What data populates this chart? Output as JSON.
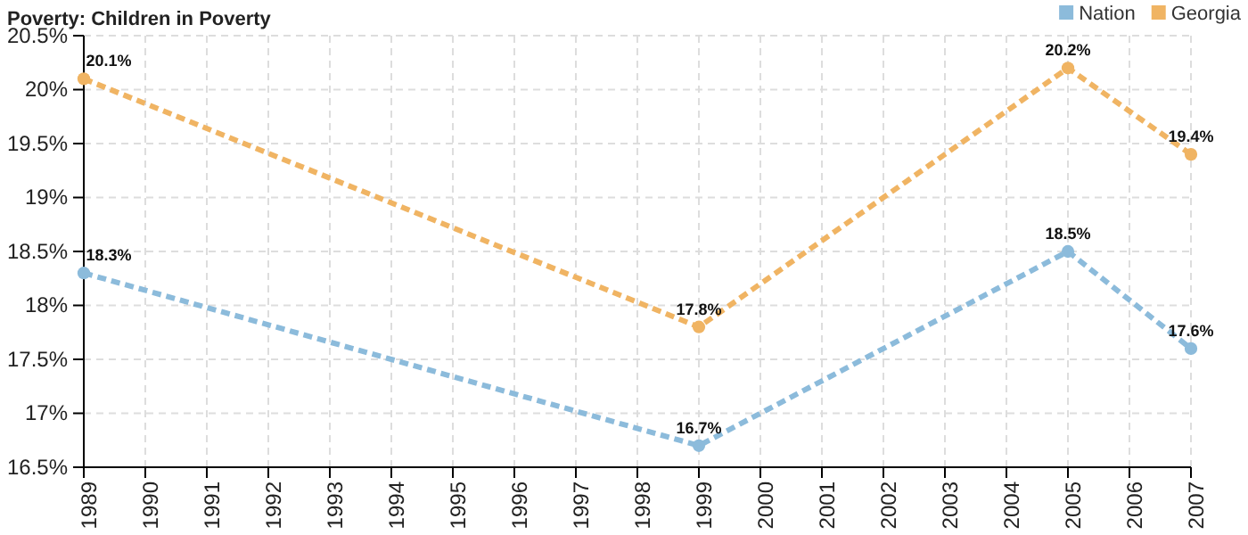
{
  "chart_data": {
    "type": "line",
    "title": "Poverty: Children in Poverty",
    "x": [
      1989,
      1999,
      2005,
      2007
    ],
    "xlim": [
      1989,
      2007
    ],
    "xticks": [
      1989,
      1990,
      1991,
      1992,
      1993,
      1994,
      1995,
      1996,
      1997,
      1998,
      1999,
      2000,
      2001,
      2002,
      2003,
      2004,
      2005,
      2006,
      2007
    ],
    "ylim": [
      16.5,
      20.5
    ],
    "yticks": [
      {
        "value": 16.5,
        "label": "16.5%"
      },
      {
        "value": 17,
        "label": "17%"
      },
      {
        "value": 17.5,
        "label": "17.5%"
      },
      {
        "value": 18,
        "label": "18%"
      },
      {
        "value": 18.5,
        "label": "18.5%"
      },
      {
        "value": 19,
        "label": "19%"
      },
      {
        "value": 19.5,
        "label": "19.5%"
      },
      {
        "value": 20,
        "label": "20%"
      },
      {
        "value": 20.5,
        "label": "20.5%"
      }
    ],
    "grid": true,
    "legend": "top right",
    "marker": "circle",
    "line_style": "dashed",
    "series": [
      {
        "name": "Nation",
        "color": "#8cbbdb",
        "values": [
          18.3,
          16.7,
          18.5,
          17.6
        ],
        "value_labels": [
          "18.3%",
          "16.7%",
          "18.5%",
          "17.6%"
        ]
      },
      {
        "name": "Georgia",
        "color": "#f0b463",
        "values": [
          20.1,
          17.8,
          20.2,
          19.4
        ],
        "value_labels": [
          "20.1%",
          "17.8%",
          "20.2%",
          "19.4%"
        ]
      }
    ]
  }
}
